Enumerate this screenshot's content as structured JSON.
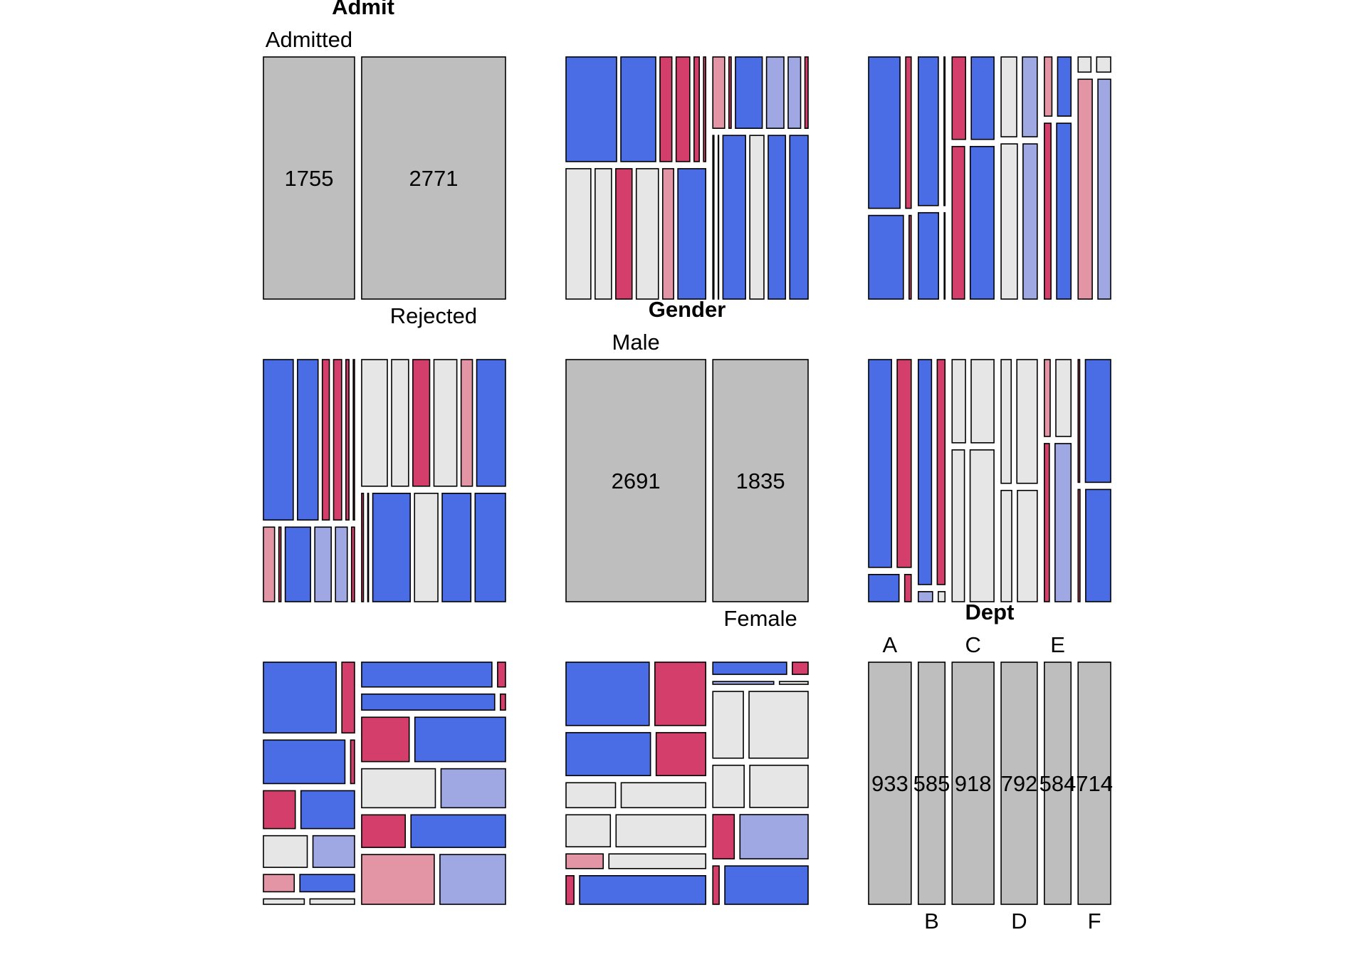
{
  "chart_data": {
    "type": "mosaic-pairs",
    "title": "",
    "variables": [
      {
        "name": "Admit",
        "levels": [
          "Admitted",
          "Rejected"
        ],
        "counts": [
          1755,
          2771
        ]
      },
      {
        "name": "Gender",
        "levels": [
          "Male",
          "Female"
        ],
        "counts": [
          2691,
          1835
        ]
      },
      {
        "name": "Dept",
        "levels": [
          "A",
          "B",
          "C",
          "D",
          "E",
          "F"
        ],
        "counts": [
          933,
          585,
          918,
          792,
          584,
          714
        ]
      }
    ],
    "table": {
      "Admitted": {
        "Male": {
          "A": 512,
          "B": 353,
          "C": 120,
          "D": 138,
          "E": 53,
          "F": 22
        },
        "Female": {
          "A": 89,
          "B": 17,
          "C": 202,
          "D": 131,
          "E": 94,
          "F": 24
        }
      },
      "Rejected": {
        "Male": {
          "A": 313,
          "B": 207,
          "C": 205,
          "D": 279,
          "E": 138,
          "F": 351
        },
        "Female": {
          "A": 19,
          "B": 8,
          "C": 391,
          "D": 244,
          "E": 299,
          "F": 317
        }
      }
    },
    "shading": {
      "pos_strong": "#4a6de5",
      "pos_weak": "#9fa8e2",
      "neutral": "#e6e6e6",
      "neg_weak": "#e495a5",
      "neg_strong": "#d33f6a",
      "diagonal": "#bebebe",
      "thresholds": [
        2,
        4
      ]
    }
  }
}
